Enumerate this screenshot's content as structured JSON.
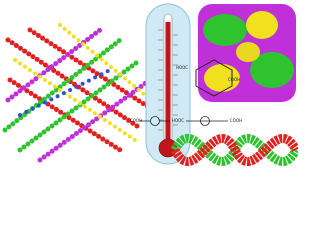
{
  "labels": [
    "HOOC",
    "COOH",
    "COOH",
    "HOOC",
    "COOH"
  ]
}
